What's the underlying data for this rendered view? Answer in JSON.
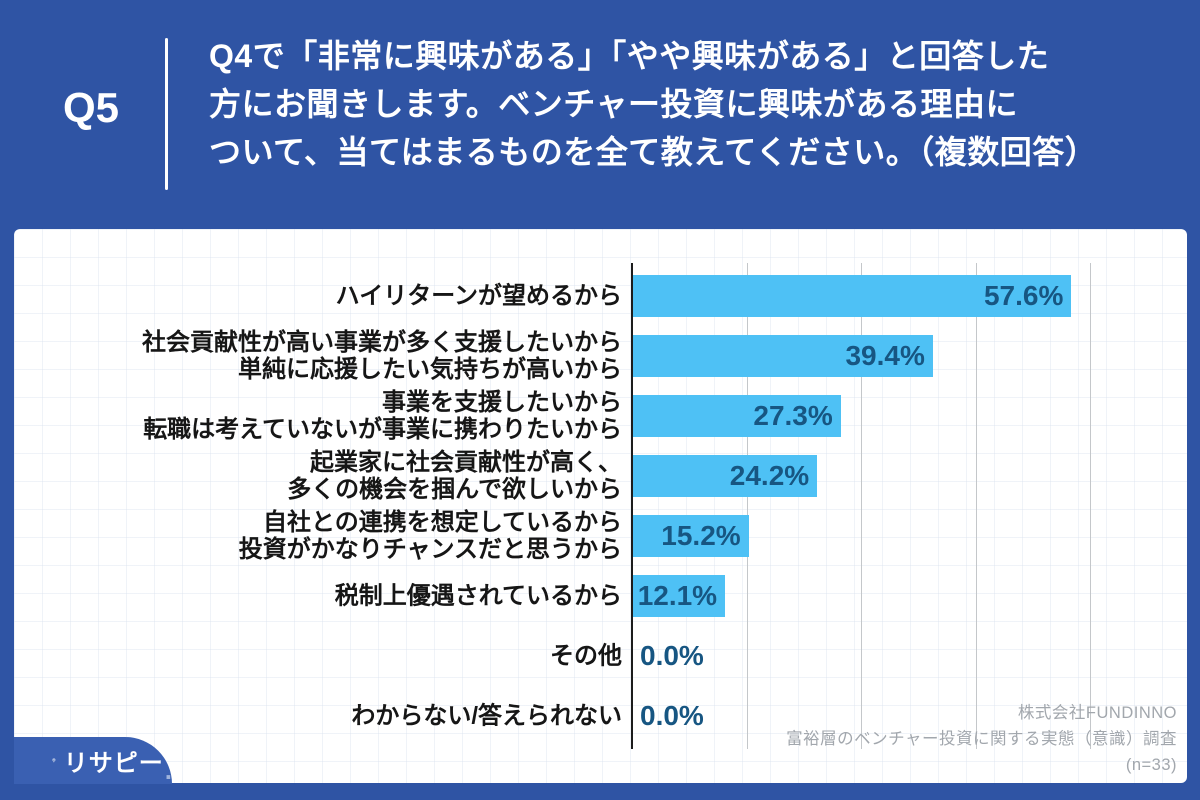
{
  "header": {
    "question_number": "Q5",
    "question_lines": [
      "Q4で「非常に興味がある」「やや興味がある」と回答した",
      "方にお聞きします。ベンチャー投資に興味がある理由に",
      "ついて、当てはまるものを全て教えてください。（複数回答）"
    ]
  },
  "chart_data": {
    "type": "bar",
    "orientation": "horizontal",
    "categories": [
      [
        "ハイリターンが望めるから"
      ],
      [
        "社会貢献性が高い事業が多く支援したいから",
        "単純に応援したい気持ちが高いから"
      ],
      [
        "事業を支援したいから",
        "転職は考えていないが事業に携わりたいから"
      ],
      [
        "起業家に社会貢献性が高く、",
        "多くの機会を掴んで欲しいから"
      ],
      [
        "自社との連携を想定しているから",
        "投資がかなりチャンスだと思うから"
      ],
      [
        "税制上優遇されているから"
      ],
      [
        "その他"
      ],
      [
        "わからない/答えられない"
      ]
    ],
    "values": [
      57.6,
      39.4,
      27.3,
      24.2,
      15.2,
      12.1,
      0.0,
      0.0
    ],
    "value_labels": [
      "57.6%",
      "39.4%",
      "27.3%",
      "24.2%",
      "15.2%",
      "12.1%",
      "0.0%",
      "0.0%"
    ],
    "xlim": [
      0,
      72
    ],
    "gridlines_pct": [
      15,
      30,
      45,
      60
    ],
    "grid": "on",
    "legend": "none",
    "title": "",
    "xlabel": "",
    "ylabel": ""
  },
  "footer": {
    "logo_text": "リサピー",
    "logo_dot": ".",
    "attribution_lines": [
      "株式会社FUNDINNO",
      "富裕層のベンチャー投資に関する実態（意識）調査",
      "(n=33)"
    ]
  },
  "colors": {
    "bg": "#2F54A4",
    "bar": "#4EC1F5",
    "val": "#175682",
    "label": "#161616",
    "grid": "#c4c7ca",
    "axis": "#1c1c1c",
    "attr": "#a2a7ad",
    "blob": "#3A60B2"
  }
}
